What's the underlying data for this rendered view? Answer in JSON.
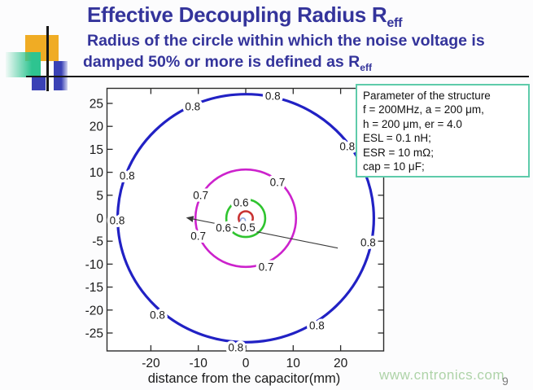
{
  "slide": {
    "title_main": "Effective Decoupling Radius R",
    "title_sub": "eff",
    "subtitle_line1": "Radius of the circle within which the noise voltage is",
    "subtitle_line2_main": "damped 50% or more is defined as R",
    "subtitle_line2_sub": "eff",
    "watermark": "www.cntronics.com",
    "page_number": "9"
  },
  "param_box": {
    "lines": [
      "Parameter of the structure",
      "f  = 200MHz,  a = 200 μm,",
      "h = 200 μm, er = 4.0",
      "ESL = 0.1 nH;",
      "ESR = 10 mΩ;",
      "cap = 10 μF;"
    ]
  },
  "colors": {
    "title": "#34349b",
    "param_box_border": "#5ecbaa",
    "watermark": "#aed3a8",
    "page_number": "#7a7a7a"
  },
  "chart_data": {
    "type": "contour",
    "title": "",
    "xlabel": "distance from the capacitor(mm)",
    "ylabel": "",
    "xlim": [
      -29.3,
      29.2
    ],
    "ylim": [
      -28.9,
      28.4
    ],
    "x_ticks": [
      -20,
      -10,
      0,
      10,
      20
    ],
    "y_ticks": [
      -25,
      -20,
      -15,
      -10,
      -5,
      0,
      5,
      10,
      15,
      20,
      25
    ],
    "grid": false,
    "legend": "none",
    "center": [
      0,
      0
    ],
    "contours": [
      {
        "level": 0.8,
        "radius_mm": 27.0,
        "color": "#2121c4",
        "stroke_width": 3.2
      },
      {
        "level": 0.7,
        "radius_mm": 10.6,
        "color": "#cc22cc",
        "stroke_width": 2.6
      },
      {
        "level": 0.6,
        "radius_mm": 4.1,
        "color": "#2fc42f",
        "stroke_width": 2.6
      },
      {
        "level": 0.5,
        "radius_mm": 1.5,
        "color": "#c83232",
        "stroke_width": 2.6
      }
    ],
    "contour_labels": [
      {
        "text": "0.8",
        "x": -11.2,
        "y": 24.3
      },
      {
        "text": "0.8",
        "x": 5.7,
        "y": 26.6
      },
      {
        "text": "0.8",
        "x": 21.4,
        "y": 15.6
      },
      {
        "text": "0.8",
        "x": -25.0,
        "y": 9.2
      },
      {
        "text": "0.8",
        "x": -27.1,
        "y": -0.5
      },
      {
        "text": "0.8",
        "x": 25.8,
        "y": -5.3
      },
      {
        "text": "0.8",
        "x": -18.6,
        "y": -21.1
      },
      {
        "text": "0.8",
        "x": 15.0,
        "y": -23.4
      },
      {
        "text": "0.8",
        "x": -2.1,
        "y": -28.2
      },
      {
        "text": "0.7",
        "x": 6.7,
        "y": 7.8
      },
      {
        "text": "0.7",
        "x": -9.5,
        "y": 5.0
      },
      {
        "text": "0.7",
        "x": -10.0,
        "y": -3.9
      },
      {
        "text": "0.7",
        "x": 4.3,
        "y": -10.6
      },
      {
        "text": "0.6",
        "x": -1.0,
        "y": 3.4
      },
      {
        "text": "0.6",
        "x": -4.7,
        "y": -2.1
      },
      {
        "text": "0.5",
        "x": 0.4,
        "y": -2.0
      }
    ],
    "center_marker": {
      "x": -0.6,
      "y": -0.5,
      "radius_px": 3,
      "color": "#8aa4e0"
    },
    "arrow": {
      "x1": 19.4,
      "y1": -6.5,
      "x2": -12.4,
      "y2": 0.1,
      "color": "#3a3a3a"
    }
  }
}
